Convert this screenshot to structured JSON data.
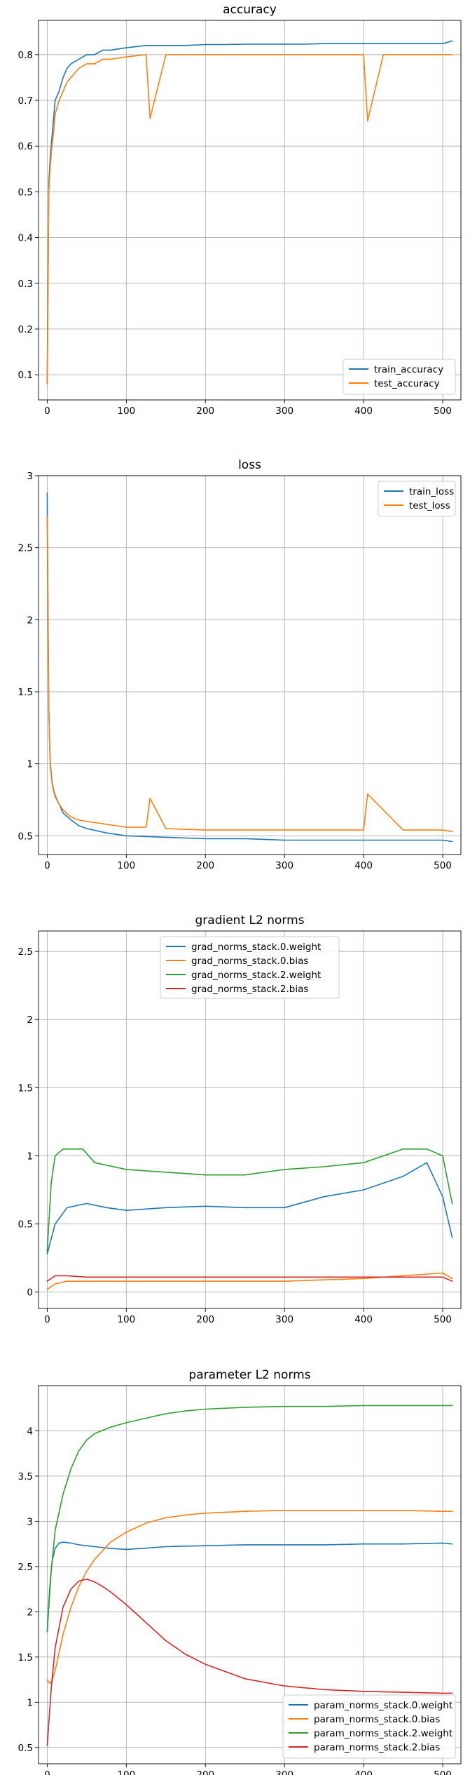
{
  "chart_data": [
    {
      "type": "line",
      "title": "accuracy",
      "xlabel": "",
      "ylabel": "",
      "xlim": [
        -11,
        523
      ],
      "ylim": [
        0.045,
        0.875
      ],
      "xticks": [
        0,
        100,
        200,
        300,
        400,
        500
      ],
      "yticks": [
        0.1,
        0.2,
        0.3,
        0.4,
        0.5,
        0.6,
        0.7,
        0.8
      ],
      "grid": true,
      "legend_position": "lower right",
      "series": [
        {
          "name": "train_accuracy",
          "color": "#1f77b4",
          "x": [
            0,
            2,
            4,
            6,
            8,
            10,
            15,
            20,
            25,
            30,
            40,
            50,
            60,
            70,
            80,
            100,
            125,
            150,
            175,
            200,
            225,
            250,
            275,
            300,
            325,
            350,
            375,
            400,
            425,
            450,
            475,
            500,
            512
          ],
          "y": [
            0.08,
            0.52,
            0.58,
            0.62,
            0.66,
            0.7,
            0.72,
            0.75,
            0.77,
            0.78,
            0.79,
            0.8,
            0.8,
            0.81,
            0.81,
            0.815,
            0.82,
            0.82,
            0.82,
            0.822,
            0.822,
            0.823,
            0.823,
            0.823,
            0.823,
            0.824,
            0.824,
            0.824,
            0.824,
            0.824,
            0.824,
            0.824,
            0.83
          ]
        },
        {
          "name": "test_accuracy",
          "color": "#ff7f0e",
          "x": [
            0,
            2,
            4,
            6,
            8,
            10,
            15,
            20,
            25,
            30,
            40,
            50,
            60,
            70,
            80,
            100,
            125,
            130,
            150,
            175,
            200,
            225,
            250,
            275,
            300,
            325,
            350,
            375,
            400,
            405,
            425,
            450,
            475,
            500,
            512
          ],
          "y": [
            0.08,
            0.5,
            0.56,
            0.6,
            0.63,
            0.67,
            0.7,
            0.72,
            0.74,
            0.75,
            0.77,
            0.78,
            0.78,
            0.79,
            0.79,
            0.795,
            0.8,
            0.66,
            0.8,
            0.8,
            0.8,
            0.8,
            0.8,
            0.8,
            0.8,
            0.8,
            0.8,
            0.8,
            0.8,
            0.655,
            0.8,
            0.8,
            0.8,
            0.8,
            0.8
          ]
        }
      ]
    },
    {
      "type": "line",
      "title": "loss",
      "xlabel": "",
      "ylabel": "",
      "xlim": [
        -11,
        523
      ],
      "ylim": [
        0.37,
        3.0
      ],
      "xticks": [
        0,
        100,
        200,
        300,
        400,
        500
      ],
      "yticks": [
        0.5,
        1.0,
        1.5,
        2.0,
        2.5,
        3.0
      ],
      "grid": true,
      "legend_position": "upper right",
      "series": [
        {
          "name": "train_loss",
          "color": "#1f77b4",
          "x": [
            0,
            1,
            2,
            3,
            4,
            6,
            8,
            10,
            15,
            20,
            30,
            40,
            50,
            75,
            100,
            150,
            200,
            250,
            300,
            350,
            400,
            450,
            500,
            512
          ],
          "y": [
            2.88,
            2.0,
            1.4,
            1.15,
            1.0,
            0.88,
            0.82,
            0.78,
            0.72,
            0.66,
            0.61,
            0.57,
            0.55,
            0.52,
            0.5,
            0.49,
            0.48,
            0.48,
            0.47,
            0.47,
            0.47,
            0.47,
            0.47,
            0.46
          ]
        },
        {
          "name": "test_loss",
          "color": "#ff7f0e",
          "x": [
            0,
            1,
            2,
            3,
            4,
            6,
            8,
            10,
            15,
            20,
            30,
            40,
            50,
            75,
            100,
            125,
            130,
            150,
            200,
            250,
            300,
            350,
            400,
            405,
            450,
            500,
            512
          ],
          "y": [
            2.72,
            1.95,
            1.38,
            1.12,
            0.98,
            0.87,
            0.81,
            0.77,
            0.72,
            0.68,
            0.63,
            0.61,
            0.6,
            0.58,
            0.56,
            0.56,
            0.76,
            0.55,
            0.54,
            0.54,
            0.54,
            0.54,
            0.54,
            0.79,
            0.54,
            0.54,
            0.53
          ]
        }
      ]
    },
    {
      "type": "line",
      "title": "gradient L2 norms",
      "xlabel": "",
      "ylabel": "",
      "xlim": [
        -11,
        523
      ],
      "ylim": [
        -0.12,
        2.65
      ],
      "xticks": [
        0,
        100,
        200,
        300,
        400,
        500
      ],
      "yticks": [
        0.0,
        0.5,
        1.0,
        1.5,
        2.0,
        2.5
      ],
      "grid": true,
      "legend_position": "upper center",
      "series": [
        {
          "name": "grad_norms_stack.0.weight",
          "color": "#1f77b4",
          "x": [
            0,
            10,
            25,
            50,
            75,
            100,
            150,
            200,
            250,
            300,
            350,
            400,
            450,
            480,
            500,
            512
          ],
          "y": [
            0.28,
            0.5,
            0.62,
            0.65,
            0.62,
            0.6,
            0.62,
            0.63,
            0.62,
            0.62,
            0.7,
            0.75,
            0.85,
            0.95,
            0.7,
            0.4
          ]
        },
        {
          "name": "grad_norms_stack.0.bias",
          "color": "#ff7f0e",
          "x": [
            0,
            10,
            25,
            50,
            100,
            150,
            200,
            250,
            300,
            350,
            400,
            450,
            500,
            512
          ],
          "y": [
            0.02,
            0.06,
            0.08,
            0.08,
            0.08,
            0.08,
            0.08,
            0.08,
            0.08,
            0.09,
            0.1,
            0.12,
            0.14,
            0.1
          ]
        },
        {
          "name": "grad_norms_stack.2.weight",
          "color": "#2ca02c",
          "x": [
            0,
            5,
            10,
            20,
            45,
            60,
            100,
            150,
            200,
            250,
            300,
            350,
            400,
            450,
            480,
            500,
            512
          ],
          "y": [
            0.3,
            0.8,
            1.0,
            1.05,
            1.05,
            0.95,
            0.9,
            0.88,
            0.86,
            0.86,
            0.9,
            0.92,
            0.95,
            1.05,
            1.05,
            1.0,
            0.65
          ]
        },
        {
          "name": "grad_norms_stack.2.bias",
          "color": "#d62728",
          "x": [
            0,
            10,
            25,
            50,
            100,
            150,
            200,
            250,
            300,
            350,
            400,
            450,
            500,
            512
          ],
          "y": [
            0.08,
            0.12,
            0.12,
            0.11,
            0.11,
            0.11,
            0.11,
            0.11,
            0.11,
            0.11,
            0.11,
            0.11,
            0.11,
            0.08
          ]
        }
      ]
    },
    {
      "type": "line",
      "title": "parameter L2 norms",
      "xlabel": "",
      "ylabel": "",
      "xlim": [
        -11,
        523
      ],
      "ylim": [
        0.32,
        4.5
      ],
      "xticks": [
        0,
        100,
        200,
        300,
        400,
        500
      ],
      "yticks": [
        0.5,
        1.0,
        1.5,
        2.0,
        2.5,
        3.0,
        3.5,
        4.0
      ],
      "grid": true,
      "legend_position": "lower right",
      "series": [
        {
          "name": "param_norms_stack.0.weight",
          "color": "#1f77b4",
          "x": [
            0,
            3,
            6,
            10,
            15,
            20,
            30,
            40,
            60,
            80,
            100,
            120,
            150,
            200,
            250,
            300,
            350,
            400,
            450,
            500,
            512
          ],
          "y": [
            1.78,
            2.25,
            2.55,
            2.7,
            2.76,
            2.77,
            2.76,
            2.74,
            2.72,
            2.7,
            2.69,
            2.7,
            2.72,
            2.73,
            2.74,
            2.74,
            2.74,
            2.75,
            2.75,
            2.76,
            2.75
          ]
        },
        {
          "name": "param_norms_stack.0.bias",
          "color": "#ff7f0e",
          "x": [
            0,
            3,
            6,
            10,
            15,
            20,
            30,
            40,
            50,
            60,
            80,
            100,
            125,
            150,
            175,
            200,
            250,
            300,
            350,
            400,
            450,
            500,
            512
          ],
          "y": [
            1.25,
            1.21,
            1.24,
            1.35,
            1.55,
            1.75,
            2.05,
            2.28,
            2.45,
            2.58,
            2.77,
            2.88,
            2.98,
            3.04,
            3.07,
            3.09,
            3.11,
            3.12,
            3.12,
            3.12,
            3.12,
            3.11,
            3.11
          ]
        },
        {
          "name": "param_norms_stack.2.weight",
          "color": "#2ca02c",
          "x": [
            0,
            5,
            10,
            20,
            30,
            40,
            50,
            60,
            80,
            100,
            125,
            150,
            175,
            200,
            250,
            300,
            350,
            400,
            450,
            500,
            512
          ],
          "y": [
            1.78,
            2.45,
            2.9,
            3.3,
            3.58,
            3.78,
            3.9,
            3.97,
            4.04,
            4.09,
            4.14,
            4.19,
            4.22,
            4.24,
            4.26,
            4.27,
            4.27,
            4.28,
            4.28,
            4.28,
            4.28
          ]
        },
        {
          "name": "param_norms_stack.2.bias",
          "color": "#d62728",
          "x": [
            0,
            5,
            10,
            20,
            30,
            40,
            50,
            60,
            70,
            80,
            100,
            125,
            150,
            175,
            200,
            250,
            300,
            350,
            400,
            450,
            500,
            512
          ],
          "y": [
            0.52,
            1.15,
            1.6,
            2.05,
            2.25,
            2.34,
            2.36,
            2.33,
            2.28,
            2.22,
            2.08,
            1.88,
            1.68,
            1.53,
            1.42,
            1.26,
            1.18,
            1.14,
            1.12,
            1.11,
            1.1,
            1.1
          ]
        }
      ]
    }
  ]
}
